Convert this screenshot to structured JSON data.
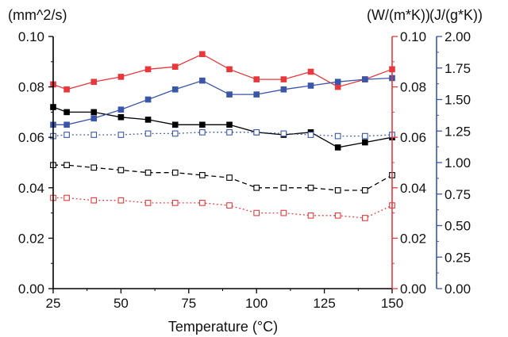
{
  "chart_data": {
    "type": "line",
    "xlabel": "Temperature (°C)",
    "x_ticks": [
      "25",
      "50",
      "75",
      "100",
      "125",
      "150"
    ],
    "xlim": [
      25,
      150
    ],
    "axes": [
      {
        "id": "left",
        "unit_label": "(mm^2/s)",
        "ylim": [
          0,
          0.1
        ],
        "ticks": [
          "0.00",
          "0.02",
          "0.04",
          "0.06",
          "0.08",
          "0.10"
        ],
        "color": "#000000"
      },
      {
        "id": "red",
        "unit_label": "(W/(m*K))",
        "ylim": [
          0,
          0.1
        ],
        "ticks": [
          "0.00",
          "0.02",
          "0.04",
          "0.06",
          "0.08",
          "0.10"
        ],
        "color": "#e8383d"
      },
      {
        "id": "blue",
        "unit_label": "(J/(g*K))",
        "ylim": [
          0,
          2
        ],
        "ticks": [
          "0.00",
          "0.25",
          "0.50",
          "0.75",
          "1.00",
          "1.25",
          "1.50",
          "1.75",
          "2.00"
        ],
        "color": "#3a56a8"
      }
    ],
    "series": [
      {
        "axis": "left",
        "color": "#000000",
        "line": "solid",
        "marker": "filled",
        "x": [
          25,
          30,
          40,
          50,
          60,
          70,
          80,
          90,
          100,
          110,
          120,
          130,
          140,
          150
        ],
        "y": [
          0.072,
          0.07,
          0.07,
          0.068,
          0.067,
          0.065,
          0.065,
          0.065,
          0.062,
          0.061,
          0.062,
          0.056,
          0.058,
          0.06
        ]
      },
      {
        "axis": "red",
        "color": "#e8383d",
        "line": "solid",
        "marker": "filled",
        "x": [
          25,
          30,
          40,
          50,
          60,
          70,
          80,
          90,
          100,
          110,
          120,
          130,
          140,
          150
        ],
        "y": [
          0.081,
          0.079,
          0.082,
          0.084,
          0.087,
          0.088,
          0.093,
          0.087,
          0.083,
          0.083,
          0.086,
          0.08,
          0.083,
          0.087
        ]
      },
      {
        "axis": "blue",
        "color": "#3a56a8",
        "line": "solid",
        "marker": "filled",
        "x": [
          25,
          30,
          40,
          50,
          60,
          70,
          80,
          90,
          100,
          110,
          120,
          130,
          140,
          150
        ],
        "y": [
          1.3,
          1.3,
          1.35,
          1.42,
          1.5,
          1.58,
          1.65,
          1.54,
          1.54,
          1.58,
          1.61,
          1.64,
          1.66,
          1.67
        ]
      },
      {
        "axis": "left",
        "color": "#000000",
        "line": "dashed",
        "marker": "open",
        "x": [
          25,
          30,
          40,
          50,
          60,
          70,
          80,
          90,
          100,
          110,
          120,
          130,
          140,
          150
        ],
        "y": [
          0.049,
          0.049,
          0.048,
          0.047,
          0.046,
          0.046,
          0.045,
          0.044,
          0.04,
          0.04,
          0.04,
          0.039,
          0.039,
          0.045
        ]
      },
      {
        "axis": "red",
        "color": "#e8383d",
        "line": "dotted",
        "marker": "open",
        "x": [
          25,
          30,
          40,
          50,
          60,
          70,
          80,
          90,
          100,
          110,
          120,
          130,
          140,
          150
        ],
        "y": [
          0.036,
          0.036,
          0.035,
          0.035,
          0.034,
          0.034,
          0.034,
          0.033,
          0.03,
          0.03,
          0.029,
          0.029,
          0.028,
          0.033
        ]
      },
      {
        "axis": "blue",
        "color": "#3a56a8",
        "line": "dotted",
        "marker": "open",
        "x": [
          25,
          30,
          40,
          50,
          60,
          70,
          80,
          90,
          100,
          110,
          120,
          130,
          140,
          150
        ],
        "y": [
          1.21,
          1.22,
          1.22,
          1.22,
          1.23,
          1.23,
          1.24,
          1.24,
          1.24,
          1.23,
          1.22,
          1.21,
          1.21,
          1.22
        ]
      }
    ]
  }
}
